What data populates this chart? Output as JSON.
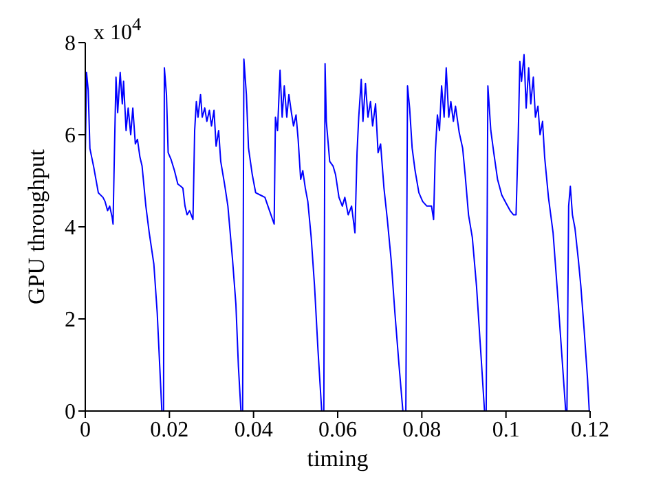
{
  "chart_data": {
    "type": "line",
    "xlabel": "timing",
    "ylabel": "GPU throughput",
    "annotations": [
      "x 10$^{4}$"
    ],
    "xlim": [
      0,
      0.12
    ],
    "xticks": [
      0,
      0.02,
      0.04,
      0.06,
      0.08,
      0.1,
      0.12
    ],
    "ylim": [
      0,
      8
    ],
    "yticks": [
      0,
      2,
      4,
      6,
      8
    ],
    "grid": false,
    "legend": false,
    "marker": "none",
    "line_style": "solid",
    "x": [
      0,
      0.0003,
      0.0007,
      0.0011,
      0.002,
      0.0031,
      0.0042,
      0.0047,
      0.0053,
      0.0058,
      0.0064,
      0.0066,
      0.0069,
      0.0073,
      0.0077,
      0.0083,
      0.0088,
      0.0091,
      0.0097,
      0.0102,
      0.0108,
      0.0113,
      0.0119,
      0.0124,
      0.013,
      0.0135,
      0.0144,
      0.0152,
      0.0163,
      0.0171,
      0.0177,
      0.0182,
      0.0186,
      0.0188,
      0.0193,
      0.0197,
      0.0204,
      0.0212,
      0.022,
      0.0227,
      0.0232,
      0.0237,
      0.0242,
      0.0248,
      0.0256,
      0.026,
      0.0264,
      0.0268,
      0.0274,
      0.0278,
      0.0284,
      0.0289,
      0.0295,
      0.03,
      0.0306,
      0.0311,
      0.0317,
      0.0322,
      0.0331,
      0.0339,
      0.035,
      0.0358,
      0.0364,
      0.037,
      0.0374,
      0.0377,
      0.0383,
      0.0388,
      0.0397,
      0.0405,
      0.0416,
      0.0427,
      0.0438,
      0.0449,
      0.0452,
      0.0457,
      0.0463,
      0.0468,
      0.0473,
      0.0479,
      0.0484,
      0.049,
      0.0495,
      0.0501,
      0.0506,
      0.0512,
      0.0517,
      0.0523,
      0.0529,
      0.0537,
      0.0545,
      0.0553,
      0.0562,
      0.0567,
      0.057,
      0.0573,
      0.0581,
      0.0589,
      0.0595,
      0.0603,
      0.0611,
      0.0617,
      0.0625,
      0.0633,
      0.0641,
      0.0646,
      0.065,
      0.0656,
      0.066,
      0.0666,
      0.0672,
      0.0678,
      0.0683,
      0.069,
      0.0696,
      0.0702,
      0.071,
      0.0718,
      0.0727,
      0.0736,
      0.0746,
      0.0755,
      0.0762,
      0.0766,
      0.0771,
      0.0777,
      0.0784,
      0.0793,
      0.0802,
      0.0812,
      0.0823,
      0.0828,
      0.0832,
      0.0837,
      0.0842,
      0.0847,
      0.0853,
      0.0858,
      0.0864,
      0.0869,
      0.0875,
      0.088,
      0.0889,
      0.0897,
      0.0903,
      0.0911,
      0.092,
      0.093,
      0.0941,
      0.0949,
      0.0953,
      0.0957,
      0.0964,
      0.0971,
      0.098,
      0.099,
      0.1001,
      0.101,
      0.1018,
      0.1024,
      0.1029,
      0.1033,
      0.1037,
      0.1043,
      0.1048,
      0.1054,
      0.1059,
      0.1065,
      0.107,
      0.1076,
      0.1081,
      0.1087,
      0.1092,
      0.1101,
      0.1112,
      0.1123,
      0.1134,
      0.1142,
      0.1145,
      0.1149,
      0.1153,
      0.1158,
      0.1164,
      0.1172,
      0.1178,
      0.1186,
      0.1194,
      0.1198
    ],
    "series": [
      {
        "color": "#0000ff",
        "values": [
          5.56,
          7.35,
          6.96,
          5.7,
          5.3,
          4.74,
          4.64,
          4.55,
          4.35,
          4.45,
          4.2,
          4.06,
          5.5,
          7.25,
          6.48,
          7.35,
          6.67,
          7.16,
          6.09,
          6.58,
          6.0,
          6.58,
          5.8,
          5.9,
          5.51,
          5.32,
          4.45,
          3.87,
          3.19,
          2.13,
          0.97,
          0,
          0,
          7.45,
          6.87,
          5.61,
          5.46,
          5.22,
          4.93,
          4.88,
          4.84,
          4.45,
          4.26,
          4.35,
          4.16,
          6.09,
          6.72,
          6.38,
          6.87,
          6.38,
          6.58,
          6.29,
          6.53,
          6.19,
          6.53,
          5.75,
          6.09,
          5.42,
          4.93,
          4.45,
          3.29,
          2.32,
          0.97,
          0,
          0,
          7.64,
          6.87,
          5.71,
          5.13,
          4.74,
          4.69,
          4.64,
          4.35,
          4.06,
          6.38,
          6.09,
          7.4,
          6.38,
          7.06,
          6.38,
          6.87,
          6.48,
          6.19,
          6.43,
          5.9,
          5.03,
          5.22,
          4.84,
          4.55,
          3.77,
          2.71,
          1.35,
          0,
          0,
          7.54,
          6.29,
          5.42,
          5.32,
          5.13,
          4.64,
          4.45,
          4.64,
          4.26,
          4.45,
          3.87,
          5.61,
          6.38,
          7.2,
          6.29,
          7.11,
          6.38,
          6.72,
          6.19,
          6.67,
          5.61,
          5.8,
          4.84,
          4.16,
          3.29,
          2.13,
          0.97,
          0,
          0,
          7.06,
          6.58,
          5.71,
          5.22,
          4.74,
          4.55,
          4.45,
          4.45,
          4.16,
          5.61,
          6.43,
          6.09,
          7.06,
          6.38,
          7.45,
          6.38,
          6.72,
          6.29,
          6.62,
          6.04,
          5.71,
          5.13,
          4.26,
          3.77,
          2.71,
          1.16,
          0,
          0,
          7.06,
          6.09,
          5.61,
          5.03,
          4.69,
          4.5,
          4.35,
          4.26,
          4.26,
          5.9,
          7.59,
          7.16,
          7.74,
          6.58,
          7.45,
          6.67,
          7.25,
          6.38,
          6.62,
          6.0,
          6.29,
          5.51,
          4.64,
          3.87,
          2.51,
          1.06,
          0,
          0,
          4.45,
          4.88,
          4.26,
          3.97,
          3.29,
          2.71,
          1.74,
          0.68,
          0
        ]
      }
    ]
  }
}
